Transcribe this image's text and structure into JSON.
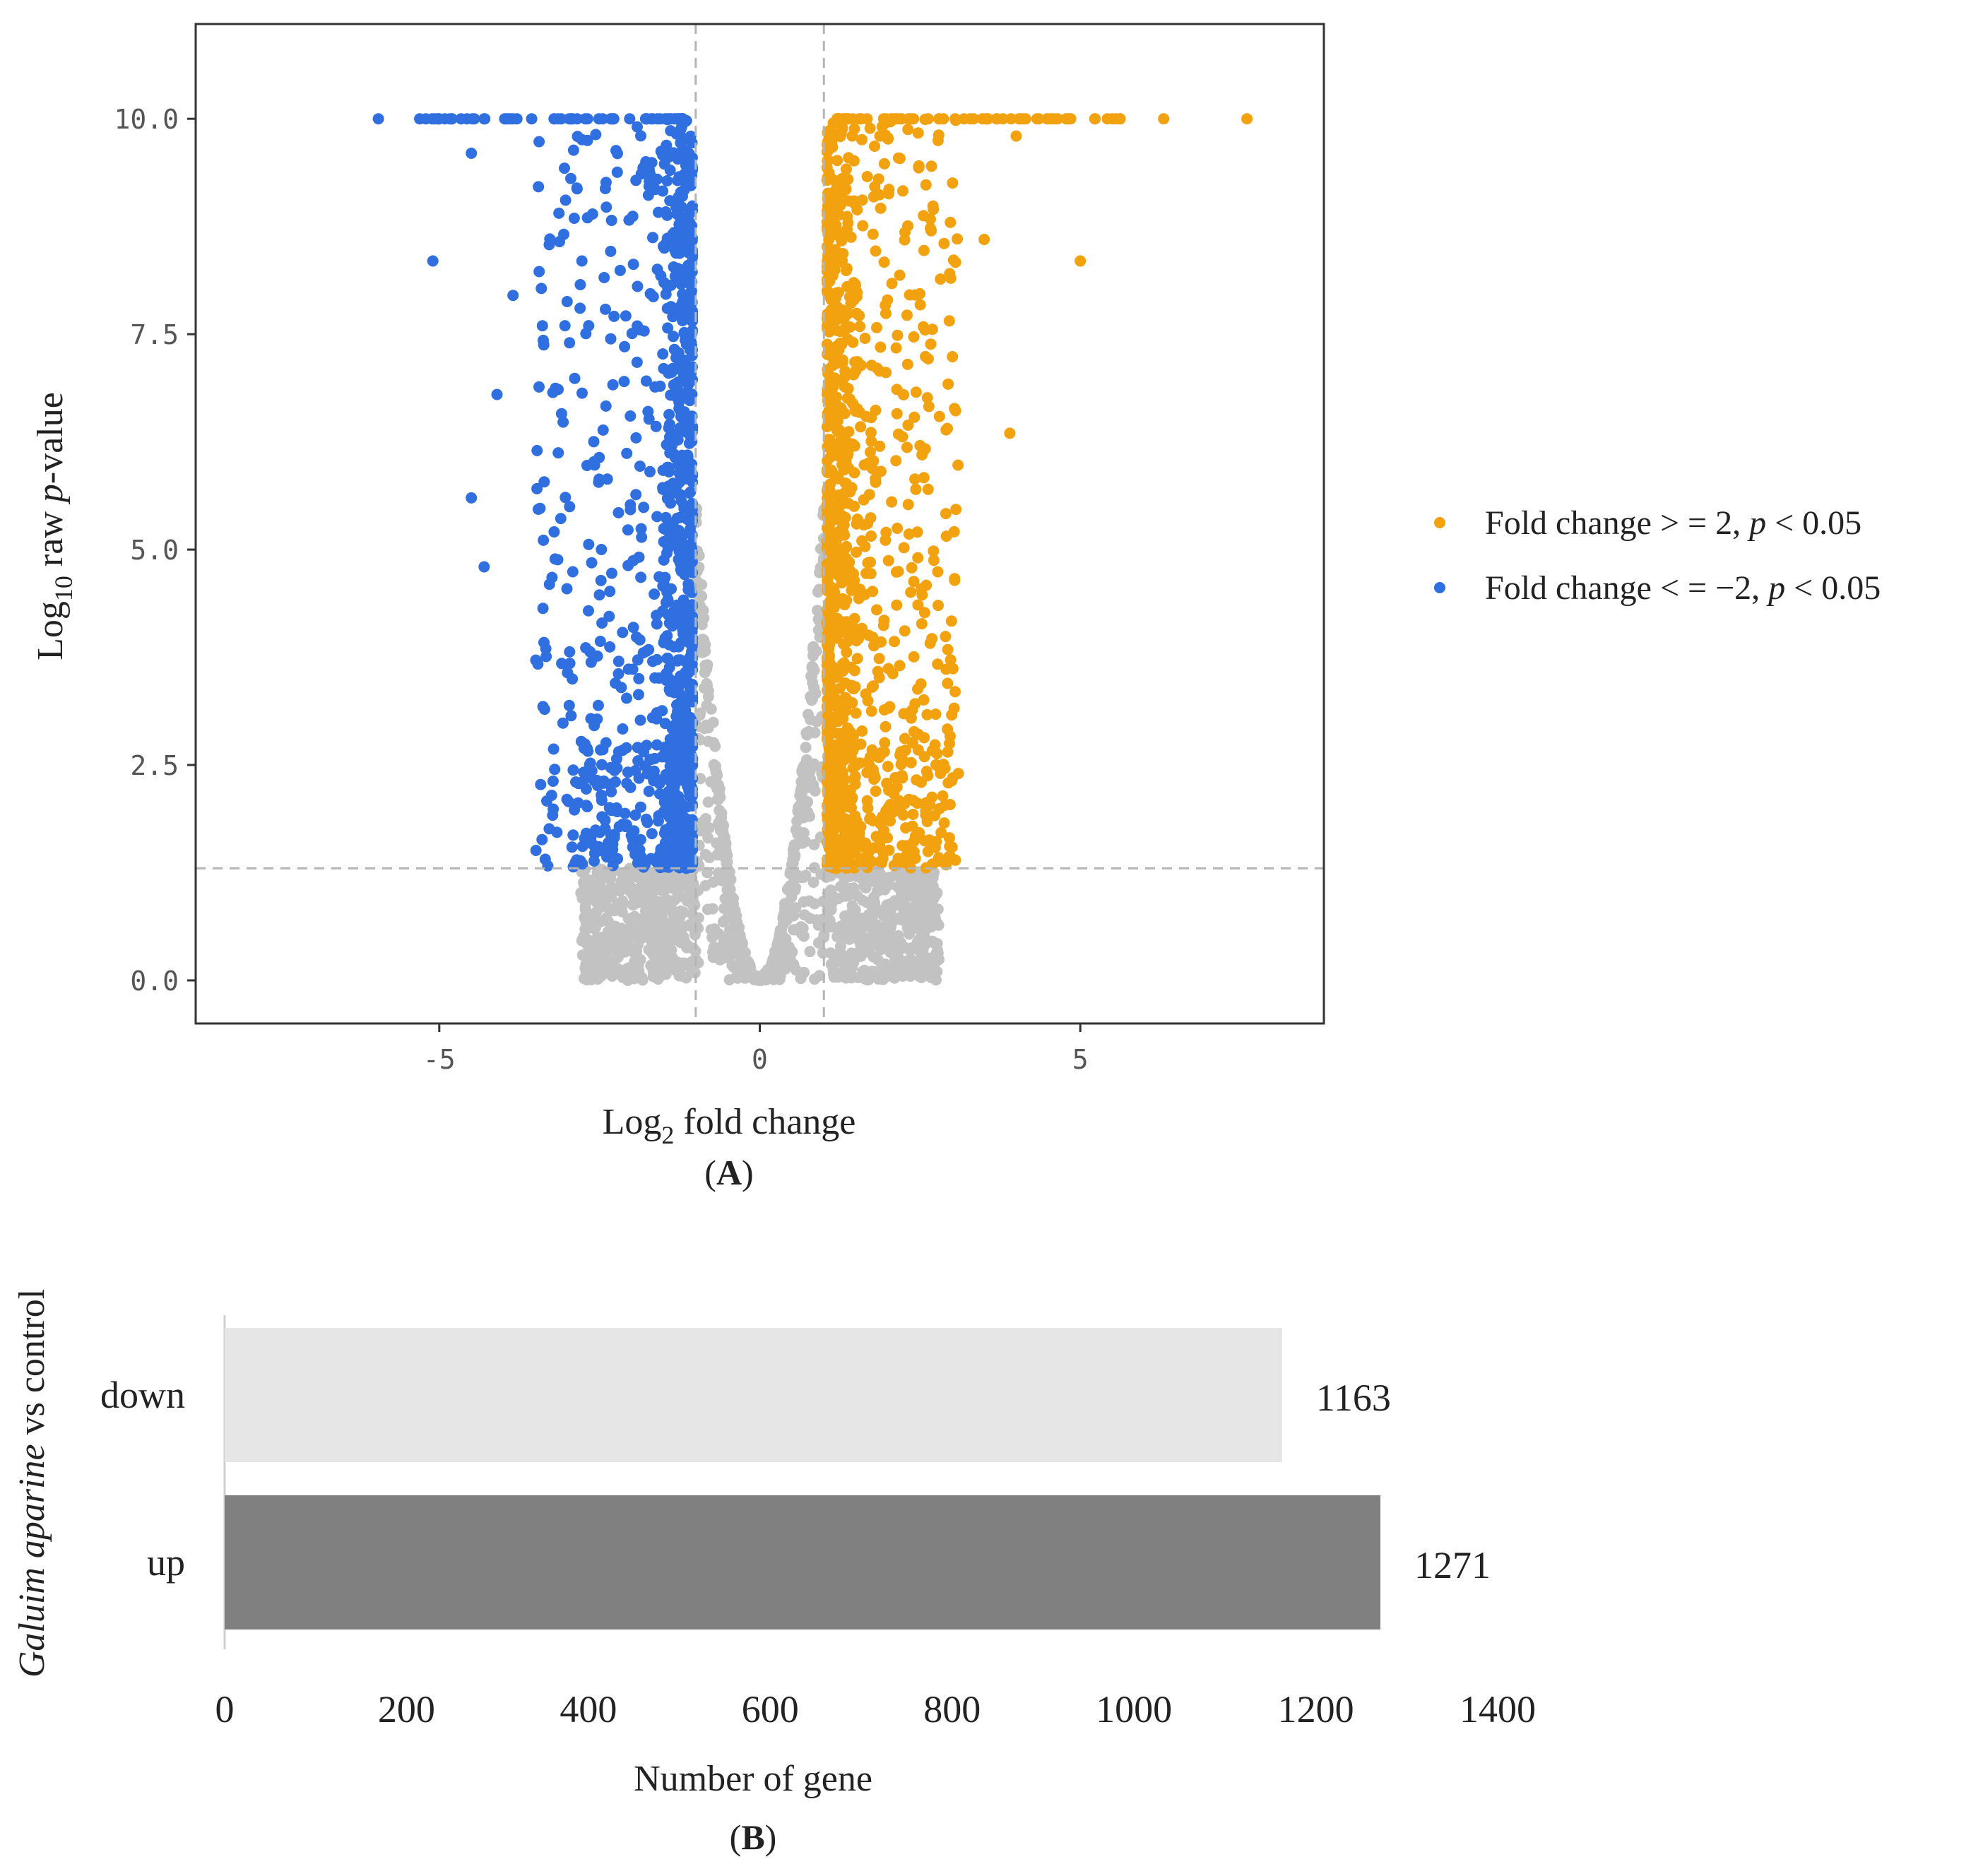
{
  "colors": {
    "up": "#F2A10F",
    "down": "#2F6FE0",
    "ns": "#C2C2C2",
    "bar_down": "#E6E6E6",
    "bar_up": "#808080",
    "dash": "#B5B5B5",
    "axis": "#333333"
  },
  "chart_data": [
    {
      "type": "scatter",
      "panel_label": "A",
      "xlabel": {
        "prefix": "Log",
        "sub": "2",
        "rest": " fold change"
      },
      "ylabel": {
        "prefix": "Log",
        "sub": "10",
        "mid": " raw ",
        "italic": "p",
        "rest": "-value"
      },
      "xlim": [
        -8.8,
        8.8
      ],
      "ylim": [
        -0.5,
        11.1
      ],
      "xticks": [
        {
          "value": -5,
          "label": "-5"
        },
        {
          "value": 0,
          "label": "0"
        },
        {
          "value": 5,
          "label": "5"
        }
      ],
      "yticks": [
        {
          "value": 0.0,
          "label": "0.0"
        },
        {
          "value": 2.5,
          "label": "2.5"
        },
        {
          "value": 5.0,
          "label": "5.0"
        },
        {
          "value": 7.5,
          "label": "7.5"
        },
        {
          "value": 10.0,
          "label": "10.0"
        }
      ],
      "thresholds": {
        "log2fc": [
          -1,
          1
        ],
        "neglog10p": 1.3
      },
      "cap": 10,
      "series": [
        {
          "name": "up",
          "legend": {
            "text1": "Fold change > = 2, ",
            "italic": "p",
            "text2": " < 0.05"
          }
        },
        {
          "name": "down",
          "legend": {
            "text1": "Fold change < = −2, ",
            "italic": "p",
            "text2": " < 0.05"
          }
        }
      ],
      "highlight_points": [
        {
          "series": "up",
          "x": 7.6,
          "y": 10.0
        },
        {
          "series": "up",
          "x": 6.3,
          "y": 10.0
        },
        {
          "series": "up",
          "x": 5.0,
          "y": 8.35
        },
        {
          "series": "up",
          "x": 3.9,
          "y": 6.35
        },
        {
          "series": "up",
          "x": 3.5,
          "y": 8.6
        },
        {
          "series": "up",
          "x": 4.0,
          "y": 9.8
        },
        {
          "series": "down",
          "x": -5.95,
          "y": 10.0
        },
        {
          "series": "down",
          "x": -5.1,
          "y": 8.35
        },
        {
          "series": "down",
          "x": -4.5,
          "y": 9.6
        },
        {
          "series": "down",
          "x": -4.5,
          "y": 5.6
        },
        {
          "series": "down",
          "x": -4.3,
          "y": 4.8
        },
        {
          "series": "down",
          "x": -4.1,
          "y": 6.8
        },
        {
          "series": "down",
          "x": -3.85,
          "y": 7.95
        }
      ]
    },
    {
      "type": "bar",
      "orientation": "horizontal",
      "panel_label": "B",
      "categories": [
        "down",
        "up"
      ],
      "values": [
        1163,
        1271
      ],
      "data_labels": [
        "1163",
        "1271"
      ],
      "xlabel": "Number of gene",
      "ylabel": {
        "italic": "Galuim aparine",
        "rest": " vs control"
      },
      "xlim": [
        0,
        1400
      ],
      "xticks": [
        {
          "value": 0,
          "label": "0"
        },
        {
          "value": 200,
          "label": "200"
        },
        {
          "value": 400,
          "label": "400"
        },
        {
          "value": 600,
          "label": "600"
        },
        {
          "value": 800,
          "label": "800"
        },
        {
          "value": 1000,
          "label": "1000"
        },
        {
          "value": 1200,
          "label": "1200"
        },
        {
          "value": 1400,
          "label": "1400"
        }
      ]
    }
  ]
}
